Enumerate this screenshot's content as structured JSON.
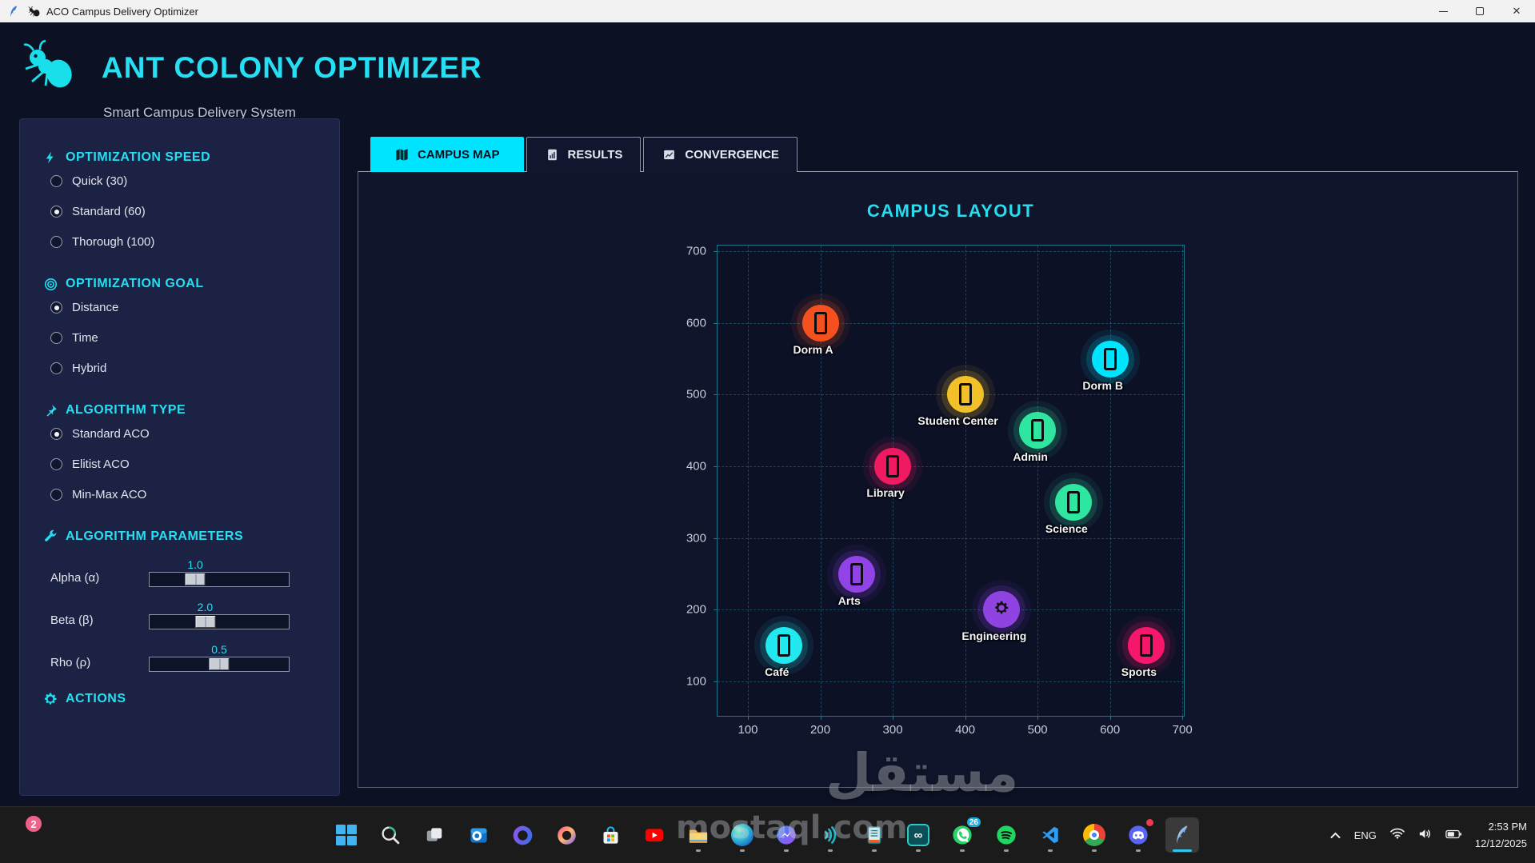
{
  "window": {
    "title": "ACO Campus Delivery Optimizer",
    "controls": [
      {
        "name": "minimize-button"
      },
      {
        "name": "maximize-button"
      },
      {
        "name": "close-button"
      }
    ]
  },
  "header": {
    "title": "ANT COLONY OPTIMIZER",
    "subtitle": "Smart Campus Delivery System",
    "accent_color": "#00e5ff",
    "logo_icon": "ant-icon"
  },
  "sidebar": {
    "sections": [
      {
        "id": "speed",
        "icon": "lightning-icon",
        "title": "OPTIMIZATION SPEED",
        "type": "radio",
        "options": [
          {
            "label": "Quick (30)",
            "selected": false
          },
          {
            "label": "Standard (60)",
            "selected": true
          },
          {
            "label": "Thorough (100)",
            "selected": false
          }
        ]
      },
      {
        "id": "goal",
        "icon": "target-icon",
        "title": "OPTIMIZATION GOAL",
        "type": "radio",
        "options": [
          {
            "label": "Distance",
            "selected": true
          },
          {
            "label": "Time",
            "selected": false
          },
          {
            "label": "Hybrid",
            "selected": false
          }
        ]
      },
      {
        "id": "algorithm",
        "icon": "pin-icon",
        "title": "ALGORITHM TYPE",
        "type": "radio",
        "options": [
          {
            "label": "Standard ACO",
            "selected": true
          },
          {
            "label": "Elitist ACO",
            "selected": false
          },
          {
            "label": "Min-Max ACO",
            "selected": false
          }
        ]
      },
      {
        "id": "parameters",
        "icon": "wrench-icon",
        "title": "ALGORITHM PARAMETERS",
        "type": "sliders",
        "sliders": [
          {
            "label": "Alpha (α)",
            "value": "1.0",
            "percent": 33
          },
          {
            "label": "Beta (β)",
            "value": "2.0",
            "percent": 40
          },
          {
            "label": "Rho (ρ)",
            "value": "0.5",
            "percent": 50
          }
        ]
      },
      {
        "id": "actions",
        "icon": "gear-icon",
        "title": "ACTIONS",
        "type": "empty"
      }
    ]
  },
  "tabs": [
    {
      "label": "CAMPUS MAP",
      "icon": "map-icon",
      "active": true
    },
    {
      "label": "RESULTS",
      "icon": "results-icon",
      "active": false
    },
    {
      "label": "CONVERGENCE",
      "icon": "convergence-icon",
      "active": false
    }
  ],
  "chart_data": {
    "type": "scatter",
    "title": "CAMPUS LAYOUT",
    "xlabel": "",
    "ylabel": "",
    "x_ticks": [
      100,
      200,
      300,
      400,
      500,
      600,
      700
    ],
    "y_ticks": [
      100,
      200,
      300,
      400,
      500,
      600,
      700
    ],
    "x_axis_range": [
      58,
      702
    ],
    "y_axis_range": [
      52,
      708
    ],
    "grid": true,
    "points": [
      {
        "label": "Dorm A",
        "x": 200,
        "y": 600,
        "color": "#f4511e",
        "glyph": "building"
      },
      {
        "label": "Dorm B",
        "x": 600,
        "y": 550,
        "color": "#00e5ff",
        "glyph": "building"
      },
      {
        "label": "Student Center",
        "x": 400,
        "y": 500,
        "color": "#f2c029",
        "glyph": "building"
      },
      {
        "label": "Admin",
        "x": 500,
        "y": 450,
        "color": "#2ee6a0",
        "glyph": "building"
      },
      {
        "label": "Library",
        "x": 300,
        "y": 400,
        "color": "#f01a62",
        "glyph": "building"
      },
      {
        "label": "Science",
        "x": 550,
        "y": 350,
        "color": "#2ee6a0",
        "glyph": "building"
      },
      {
        "label": "Arts",
        "x": 250,
        "y": 250,
        "color": "#9143e8",
        "glyph": "building"
      },
      {
        "label": "Engineering",
        "x": 450,
        "y": 200,
        "color": "#8f43e0",
        "glyph": "gear"
      },
      {
        "label": "Café",
        "x": 150,
        "y": 150,
        "color": "#22e8f0",
        "glyph": "building"
      },
      {
        "label": "Sports",
        "x": 650,
        "y": 150,
        "color": "#f5176c",
        "glyph": "building"
      }
    ]
  },
  "watermark": {
    "arabic": "مستقل",
    "domain": "mostaql.com"
  },
  "taskbar": {
    "notification_badge": "2",
    "icons": [
      {
        "name": "start"
      },
      {
        "name": "search"
      },
      {
        "name": "task-view"
      },
      {
        "name": "outlook"
      },
      {
        "name": "m365"
      },
      {
        "name": "copilot"
      },
      {
        "name": "store"
      },
      {
        "name": "youtube"
      },
      {
        "name": "file-explorer",
        "running": true
      },
      {
        "name": "edge-sphere",
        "running": true
      },
      {
        "name": "messenger",
        "running": true
      },
      {
        "name": "audio-wave",
        "running": true
      },
      {
        "name": "notes",
        "running": true
      },
      {
        "name": "infinity-app",
        "running": true
      },
      {
        "name": "whatsapp",
        "running": true,
        "badge": "26"
      },
      {
        "name": "spotify",
        "running": true
      },
      {
        "name": "vscode",
        "running": true
      },
      {
        "name": "chrome",
        "running": true
      },
      {
        "name": "discord",
        "running": true,
        "dot_badge": true
      },
      {
        "name": "python-app",
        "active": true
      }
    ],
    "tray": {
      "language": "ENG",
      "time": "2:53 PM",
      "date": "12/12/2025"
    }
  }
}
